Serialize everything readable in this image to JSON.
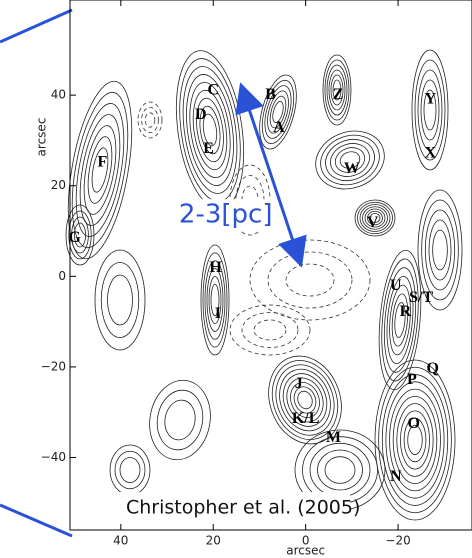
{
  "chart_data": {
    "type": "contour",
    "xlabel": "arcsec",
    "ylabel": "arcsec",
    "xlim": [
      51,
      -36
    ],
    "ylim": [
      -56,
      61
    ],
    "xticks": [
      40,
      20,
      0,
      {
        "value": -20,
        "label": "−20"
      }
    ],
    "yticks": [
      40,
      20,
      0,
      {
        "value": -20,
        "label": "−20"
      },
      {
        "value": -40,
        "label": "−40"
      }
    ],
    "labels": [
      {
        "text": "C",
        "x": 20,
        "y": 41
      },
      {
        "text": "B",
        "x": 7.6,
        "y": 40
      },
      {
        "text": "D",
        "x": 22.7,
        "y": 35.5
      },
      {
        "text": "A",
        "x": 5.8,
        "y": 32.7
      },
      {
        "text": "E",
        "x": 21,
        "y": 28
      },
      {
        "text": "Z",
        "x": -7,
        "y": 40
      },
      {
        "text": "Y",
        "x": -27,
        "y": 39
      },
      {
        "text": "X",
        "x": -27,
        "y": 27
      },
      {
        "text": "W",
        "x": -10,
        "y": 23.6
      },
      {
        "text": "F",
        "x": 44,
        "y": 25
      },
      {
        "text": "G",
        "x": 50,
        "y": 8.4
      },
      {
        "text": "V",
        "x": -14.5,
        "y": 11.7
      },
      {
        "text": "H",
        "x": 19.5,
        "y": 1.8
      },
      {
        "text": "I",
        "x": 19,
        "y": -8.4
      },
      {
        "text": "U",
        "x": -19.5,
        "y": -2.2
      },
      {
        "text": "S/T",
        "x": -25,
        "y": -4.9
      },
      {
        "text": "R",
        "x": -21.6,
        "y": -8
      },
      {
        "text": "Q",
        "x": -27.5,
        "y": -20.5
      },
      {
        "text": "P",
        "x": -23,
        "y": -23
      },
      {
        "text": "J",
        "x": 1.5,
        "y": -23.8
      },
      {
        "text": "K/L",
        "x": 0,
        "y": -31.6
      },
      {
        "text": "M",
        "x": -6,
        "y": -35.8
      },
      {
        "text": "O",
        "x": -23.4,
        "y": -32.7
      },
      {
        "text": "N",
        "x": -19.5,
        "y": -44.4
      }
    ],
    "annotation": {
      "text": "2-3[pc]",
      "x": 17.3,
      "y": 13.5
    },
    "credit": "Christopher et al. (2005)"
  }
}
